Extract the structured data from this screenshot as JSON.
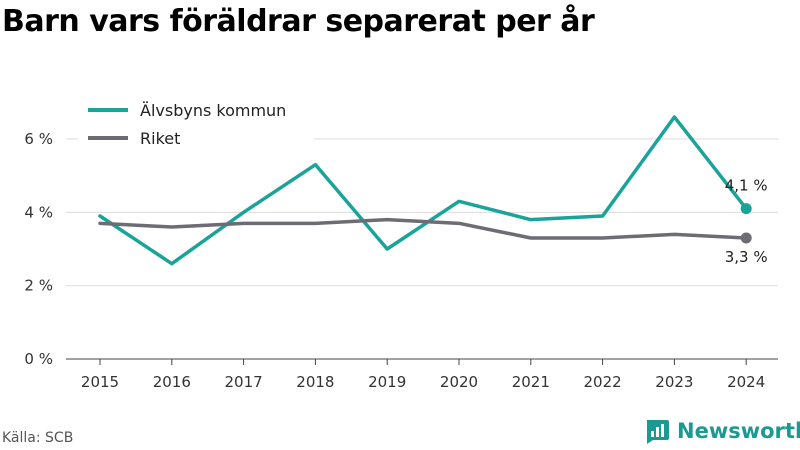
{
  "title": "Barn vars föräldrar separerat per år",
  "source": "Källa: SCB",
  "brand": "Newsworthy",
  "chart_data": {
    "type": "line",
    "x": [
      "2015",
      "2016",
      "2017",
      "2018",
      "2019",
      "2020",
      "2021",
      "2022",
      "2023",
      "2024"
    ],
    "series": [
      {
        "name": "Älvsbyns kommun",
        "color": "#1aa39a",
        "values": [
          3.9,
          2.6,
          4.0,
          5.3,
          3.0,
          4.3,
          3.8,
          3.9,
          6.6,
          4.1
        ],
        "end_label": "4,1 %"
      },
      {
        "name": "Riket",
        "color": "#6d6c75",
        "values": [
          3.7,
          3.6,
          3.7,
          3.7,
          3.8,
          3.7,
          3.3,
          3.3,
          3.4,
          3.3
        ],
        "end_label": "3,3 %"
      }
    ],
    "yticks": [
      0,
      2,
      4,
      6
    ],
    "ytick_labels": [
      "0 %",
      "2 %",
      "4 %",
      "6 %"
    ],
    "ylim": [
      0,
      7.5
    ],
    "grid": true,
    "legend": "top-left"
  }
}
